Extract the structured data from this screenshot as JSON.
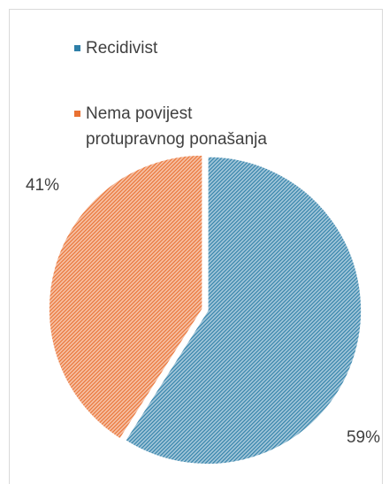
{
  "chart_data": {
    "type": "pie",
    "categories": [
      "Recidivist",
      "Nema povijest protupravnog ponašanja"
    ],
    "values": [
      59,
      41
    ],
    "value_labels": [
      "59%",
      "41%"
    ],
    "colors": [
      "#2e7fa8",
      "#e97132"
    ],
    "legend": "top"
  }
}
